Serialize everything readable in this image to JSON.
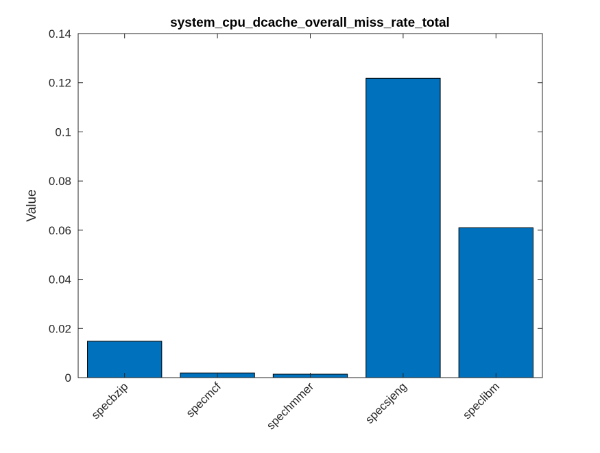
{
  "chart_data": {
    "type": "bar",
    "title": "system_cpu_dcache_overall_miss_rate_total",
    "xlabel": "",
    "ylabel": "Value",
    "categories": [
      "specbzip",
      "specmcf",
      "spechmmer",
      "specsjeng",
      "speclibm"
    ],
    "values": [
      0.0148,
      0.0019,
      0.0014,
      0.1218,
      0.061
    ],
    "ylim": [
      0,
      0.14
    ],
    "yticks": [
      0,
      0.02,
      0.04,
      0.06,
      0.08,
      0.1,
      0.12,
      0.14
    ],
    "ytick_labels": [
      "0",
      "0.02",
      "0.04",
      "0.06",
      "0.08",
      "0.1",
      "0.12",
      "0.14"
    ],
    "grid": false,
    "bar_color": "#0072BD",
    "bar_edge_color": "#000000",
    "axis_color": "#262626"
  }
}
